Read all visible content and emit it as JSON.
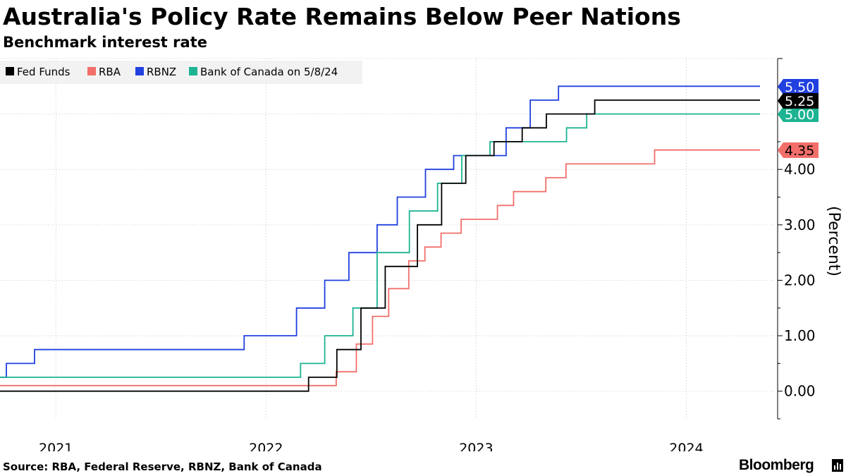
{
  "header": {
    "title": "Australia's Policy Rate Remains Below Peer Nations",
    "subtitle": "Benchmark interest rate"
  },
  "footer": {
    "source": "Source: RBA, Federal Reserve, RBNZ, Bank of Canada",
    "brand": "Bloomberg"
  },
  "chart_data": {
    "type": "line",
    "ylabel": "(Percent)",
    "ylim": [
      -0.5,
      6.0
    ],
    "xlim": [
      "2020-09-26",
      "2024-05-08"
    ],
    "y_ticks": [
      0,
      1,
      2,
      3,
      4
    ],
    "y_tick_labels": [
      "0.00",
      "1.00",
      "2.00",
      "3.00",
      "4.00"
    ],
    "x_tick_labels": [
      {
        "label": "2021",
        "date": "2021-01-01"
      },
      {
        "label": "2022",
        "date": "2022-01-01"
      },
      {
        "label": "2023",
        "date": "2023-01-01"
      },
      {
        "label": "2024",
        "date": "2024-01-01"
      }
    ],
    "grid": true,
    "legend_position": "top-left",
    "step": true,
    "series": [
      {
        "name": "Fed Funds",
        "color": "#000000",
        "end_label": "5.25",
        "points": [
          [
            "2020-09-26",
            0.0
          ],
          [
            "2022-03-16",
            0.25
          ],
          [
            "2022-05-04",
            0.75
          ],
          [
            "2022-06-15",
            1.5
          ],
          [
            "2022-07-27",
            2.25
          ],
          [
            "2022-09-21",
            3.0
          ],
          [
            "2022-11-02",
            3.75
          ],
          [
            "2022-12-14",
            4.25
          ],
          [
            "2023-02-01",
            4.5
          ],
          [
            "2023-03-22",
            4.75
          ],
          [
            "2023-05-03",
            5.0
          ],
          [
            "2023-07-26",
            5.25
          ],
          [
            "2024-05-08",
            5.25
          ]
        ]
      },
      {
        "name": "RBA",
        "color": "#f26f6a",
        "end_label": "4.35",
        "points": [
          [
            "2020-09-26",
            0.1
          ],
          [
            "2022-05-03",
            0.35
          ],
          [
            "2022-06-07",
            0.85
          ],
          [
            "2022-07-05",
            1.35
          ],
          [
            "2022-08-02",
            1.85
          ],
          [
            "2022-09-06",
            2.35
          ],
          [
            "2022-10-04",
            2.6
          ],
          [
            "2022-11-01",
            2.85
          ],
          [
            "2022-12-06",
            3.1
          ],
          [
            "2023-02-07",
            3.35
          ],
          [
            "2023-03-07",
            3.6
          ],
          [
            "2023-05-02",
            3.85
          ],
          [
            "2023-06-06",
            4.1
          ],
          [
            "2023-11-07",
            4.35
          ],
          [
            "2024-05-08",
            4.35
          ]
        ]
      },
      {
        "name": "RBNZ",
        "color": "#2140e0",
        "end_label": "5.50",
        "points": [
          [
            "2020-09-26",
            0.25
          ],
          [
            "2020-10-07",
            0.5
          ],
          [
            "2020-11-25",
            0.75
          ],
          [
            "2021-11-24",
            1.0
          ],
          [
            "2022-02-23",
            1.5
          ],
          [
            "2022-04-13",
            2.0
          ],
          [
            "2022-05-25",
            2.5
          ],
          [
            "2022-07-13",
            3.0
          ],
          [
            "2022-08-17",
            3.5
          ],
          [
            "2022-10-05",
            4.0
          ],
          [
            "2022-11-23",
            4.25
          ],
          [
            "2023-02-22",
            4.75
          ],
          [
            "2023-04-05",
            5.25
          ],
          [
            "2023-05-24",
            5.5
          ],
          [
            "2024-05-08",
            5.5
          ]
        ]
      },
      {
        "name": "Bank of Canada on 5/8/24",
        "color": "#1db393",
        "end_label": "5.00",
        "points": [
          [
            "2020-09-26",
            0.25
          ],
          [
            "2022-03-02",
            0.5
          ],
          [
            "2022-04-13",
            1.0
          ],
          [
            "2022-06-01",
            1.5
          ],
          [
            "2022-07-13",
            2.5
          ],
          [
            "2022-09-07",
            3.25
          ],
          [
            "2022-10-26",
            3.75
          ],
          [
            "2022-12-07",
            4.25
          ],
          [
            "2023-01-25",
            4.5
          ],
          [
            "2023-06-07",
            4.75
          ],
          [
            "2023-07-12",
            5.0
          ],
          [
            "2024-05-08",
            5.0
          ]
        ]
      }
    ]
  }
}
